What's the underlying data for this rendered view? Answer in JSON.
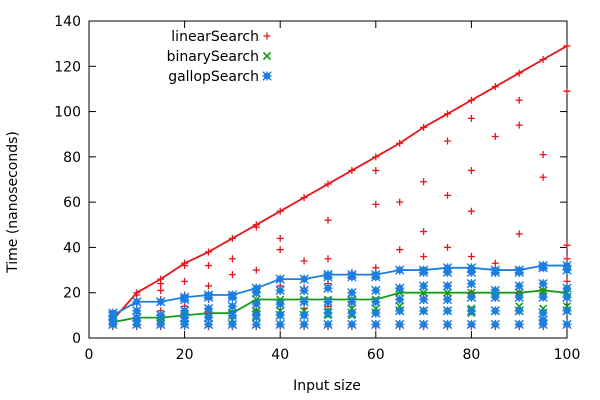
{
  "chart_data": {
    "type": "scatter",
    "xlabel": "Input size",
    "ylabel": "Time (nanoseconds)",
    "xlim": [
      0,
      100
    ],
    "ylim": [
      0,
      140
    ],
    "xticks": [
      0,
      20,
      40,
      60,
      80,
      100
    ],
    "yticks": [
      0,
      20,
      40,
      60,
      80,
      100,
      120,
      140
    ],
    "grid": false,
    "legend_position": "top-left",
    "series": [
      {
        "name": "linearSearch",
        "marker": "plus",
        "color": "#e8141a",
        "line": [
          [
            5,
            8
          ],
          [
            10,
            20
          ],
          [
            15,
            26
          ],
          [
            20,
            33
          ],
          [
            25,
            38
          ],
          [
            30,
            44
          ],
          [
            35,
            50
          ],
          [
            40,
            56
          ],
          [
            45,
            62
          ],
          [
            50,
            68
          ],
          [
            55,
            74
          ],
          [
            60,
            80
          ],
          [
            65,
            86
          ],
          [
            70,
            93
          ],
          [
            75,
            99
          ],
          [
            80,
            105
          ],
          [
            85,
            111
          ],
          [
            90,
            117
          ],
          [
            95,
            123
          ],
          [
            100,
            129
          ]
        ],
        "points": [
          [
            5,
            5
          ],
          [
            5,
            7
          ],
          [
            5,
            8
          ],
          [
            5,
            10
          ],
          [
            10,
            5
          ],
          [
            10,
            8
          ],
          [
            10,
            11
          ],
          [
            10,
            15
          ],
          [
            10,
            19
          ],
          [
            10,
            20
          ],
          [
            15,
            5
          ],
          [
            15,
            9
          ],
          [
            15,
            12
          ],
          [
            15,
            17
          ],
          [
            15,
            21
          ],
          [
            15,
            24
          ],
          [
            15,
            26
          ],
          [
            20,
            5
          ],
          [
            20,
            9
          ],
          [
            20,
            14
          ],
          [
            20,
            19
          ],
          [
            20,
            25
          ],
          [
            20,
            32
          ],
          [
            20,
            33
          ],
          [
            25,
            5
          ],
          [
            25,
            11
          ],
          [
            25,
            17
          ],
          [
            25,
            23
          ],
          [
            25,
            32
          ],
          [
            25,
            38
          ],
          [
            30,
            5
          ],
          [
            30,
            12
          ],
          [
            30,
            19
          ],
          [
            30,
            28
          ],
          [
            30,
            35
          ],
          [
            30,
            44
          ],
          [
            35,
            5
          ],
          [
            35,
            12
          ],
          [
            35,
            22
          ],
          [
            35,
            30
          ],
          [
            35,
            49
          ],
          [
            35,
            50
          ],
          [
            40,
            5
          ],
          [
            40,
            14
          ],
          [
            40,
            23
          ],
          [
            40,
            39
          ],
          [
            40,
            44
          ],
          [
            40,
            56
          ],
          [
            45,
            5
          ],
          [
            45,
            13
          ],
          [
            45,
            22
          ],
          [
            45,
            34
          ],
          [
            45,
            62
          ],
          [
            50,
            5
          ],
          [
            50,
            14
          ],
          [
            50,
            24
          ],
          [
            50,
            35
          ],
          [
            50,
            52
          ],
          [
            50,
            68
          ],
          [
            55,
            5
          ],
          [
            55,
            15
          ],
          [
            55,
            28
          ],
          [
            55,
            29
          ],
          [
            55,
            74
          ],
          [
            60,
            5
          ],
          [
            60,
            16
          ],
          [
            60,
            31
          ],
          [
            60,
            59
          ],
          [
            60,
            74
          ],
          [
            60,
            80
          ],
          [
            65,
            5
          ],
          [
            65,
            17
          ],
          [
            65,
            30
          ],
          [
            65,
            39
          ],
          [
            65,
            60
          ],
          [
            65,
            86
          ],
          [
            70,
            5
          ],
          [
            70,
            18
          ],
          [
            70,
            36
          ],
          [
            70,
            47
          ],
          [
            70,
            69
          ],
          [
            70,
            93
          ],
          [
            75,
            5
          ],
          [
            75,
            18
          ],
          [
            75,
            40
          ],
          [
            75,
            63
          ],
          [
            75,
            87
          ],
          [
            75,
            99
          ],
          [
            80,
            5
          ],
          [
            80,
            20
          ],
          [
            80,
            36
          ],
          [
            80,
            56
          ],
          [
            80,
            74
          ],
          [
            80,
            97
          ],
          [
            80,
            105
          ],
          [
            85,
            5
          ],
          [
            85,
            18
          ],
          [
            85,
            33
          ],
          [
            85,
            89
          ],
          [
            85,
            111
          ],
          [
            90,
            5
          ],
          [
            90,
            20
          ],
          [
            90,
            46
          ],
          [
            90,
            94
          ],
          [
            90,
            105
          ],
          [
            90,
            117
          ],
          [
            95,
            5
          ],
          [
            95,
            21
          ],
          [
            95,
            71
          ],
          [
            95,
            81
          ],
          [
            95,
            123
          ],
          [
            100,
            5
          ],
          [
            100,
            25
          ],
          [
            100,
            35
          ],
          [
            100,
            41
          ],
          [
            100,
            109
          ],
          [
            100,
            129
          ]
        ]
      },
      {
        "name": "binarySearch",
        "marker": "cross",
        "color": "#12a012",
        "line": [
          [
            5,
            7
          ],
          [
            10,
            9
          ],
          [
            15,
            9
          ],
          [
            20,
            10
          ],
          [
            25,
            11
          ],
          [
            30,
            11
          ],
          [
            35,
            17
          ],
          [
            40,
            17
          ],
          [
            45,
            17
          ],
          [
            50,
            17
          ],
          [
            55,
            17
          ],
          [
            60,
            17
          ],
          [
            65,
            20
          ],
          [
            70,
            20
          ],
          [
            75,
            20
          ],
          [
            80,
            20
          ],
          [
            85,
            20
          ],
          [
            90,
            20
          ],
          [
            95,
            21
          ],
          [
            100,
            20
          ]
        ],
        "points": [
          [
            5,
            6
          ],
          [
            5,
            7
          ],
          [
            5,
            8
          ],
          [
            10,
            7
          ],
          [
            10,
            9
          ],
          [
            15,
            8
          ],
          [
            15,
            9
          ],
          [
            20,
            8
          ],
          [
            20,
            10
          ],
          [
            25,
            9
          ],
          [
            25,
            11
          ],
          [
            30,
            8
          ],
          [
            30,
            10
          ],
          [
            30,
            11
          ],
          [
            35,
            9
          ],
          [
            35,
            11
          ],
          [
            35,
            12
          ],
          [
            35,
            17
          ],
          [
            40,
            10
          ],
          [
            40,
            12
          ],
          [
            40,
            17
          ],
          [
            45,
            10
          ],
          [
            45,
            12
          ],
          [
            45,
            17
          ],
          [
            50,
            10
          ],
          [
            50,
            12
          ],
          [
            50,
            17
          ],
          [
            55,
            10
          ],
          [
            55,
            13
          ],
          [
            55,
            17
          ],
          [
            60,
            11
          ],
          [
            60,
            13
          ],
          [
            60,
            17
          ],
          [
            65,
            12
          ],
          [
            65,
            14
          ],
          [
            65,
            20
          ],
          [
            70,
            12
          ],
          [
            70,
            20
          ],
          [
            75,
            12
          ],
          [
            75,
            20
          ],
          [
            80,
            11
          ],
          [
            80,
            13
          ],
          [
            80,
            20
          ],
          [
            85,
            12
          ],
          [
            85,
            20
          ],
          [
            90,
            12
          ],
          [
            90,
            14
          ],
          [
            90,
            20
          ],
          [
            95,
            13
          ],
          [
            95,
            20
          ],
          [
            95,
            21
          ],
          [
            100,
            12
          ],
          [
            100,
            14
          ],
          [
            100,
            20
          ]
        ]
      },
      {
        "name": "gallopSearch",
        "marker": "filled-star",
        "color": "#1c7fe0",
        "line": [
          [
            5,
            10
          ],
          [
            10,
            16
          ],
          [
            15,
            16
          ],
          [
            20,
            18
          ],
          [
            25,
            19
          ],
          [
            30,
            19
          ],
          [
            35,
            22
          ],
          [
            40,
            26
          ],
          [
            45,
            26
          ],
          [
            50,
            28
          ],
          [
            55,
            28
          ],
          [
            60,
            28
          ],
          [
            65,
            30
          ],
          [
            70,
            30
          ],
          [
            75,
            31
          ],
          [
            80,
            31
          ],
          [
            85,
            30
          ],
          [
            90,
            30
          ],
          [
            95,
            32
          ],
          [
            100,
            32
          ]
        ],
        "points": [
          [
            5,
            6
          ],
          [
            5,
            8
          ],
          [
            5,
            10
          ],
          [
            5,
            11
          ],
          [
            10,
            6
          ],
          [
            10,
            9
          ],
          [
            10,
            12
          ],
          [
            10,
            16
          ],
          [
            15,
            6
          ],
          [
            15,
            10
          ],
          [
            15,
            16
          ],
          [
            20,
            6
          ],
          [
            20,
            9
          ],
          [
            20,
            12
          ],
          [
            20,
            17
          ],
          [
            20,
            18
          ],
          [
            25,
            6
          ],
          [
            25,
            9
          ],
          [
            25,
            13
          ],
          [
            25,
            18
          ],
          [
            25,
            19
          ],
          [
            30,
            6
          ],
          [
            30,
            10
          ],
          [
            30,
            14
          ],
          [
            30,
            18
          ],
          [
            30,
            19
          ],
          [
            35,
            6
          ],
          [
            35,
            10
          ],
          [
            35,
            15
          ],
          [
            35,
            20
          ],
          [
            35,
            22
          ],
          [
            40,
            6
          ],
          [
            40,
            10
          ],
          [
            40,
            15
          ],
          [
            40,
            21
          ],
          [
            40,
            26
          ],
          [
            45,
            6
          ],
          [
            45,
            10
          ],
          [
            45,
            16
          ],
          [
            45,
            21
          ],
          [
            45,
            26
          ],
          [
            50,
            6
          ],
          [
            50,
            11
          ],
          [
            50,
            16
          ],
          [
            50,
            22
          ],
          [
            50,
            27
          ],
          [
            50,
            28
          ],
          [
            55,
            6
          ],
          [
            55,
            11
          ],
          [
            55,
            16
          ],
          [
            55,
            20
          ],
          [
            55,
            27
          ],
          [
            55,
            28
          ],
          [
            60,
            6
          ],
          [
            60,
            11
          ],
          [
            60,
            16
          ],
          [
            60,
            21
          ],
          [
            60,
            27
          ],
          [
            60,
            28
          ],
          [
            65,
            6
          ],
          [
            65,
            12
          ],
          [
            65,
            17
          ],
          [
            65,
            22
          ],
          [
            65,
            30
          ],
          [
            70,
            6
          ],
          [
            70,
            12
          ],
          [
            70,
            17
          ],
          [
            70,
            23
          ],
          [
            70,
            29
          ],
          [
            70,
            30
          ],
          [
            75,
            6
          ],
          [
            75,
            12
          ],
          [
            75,
            17
          ],
          [
            75,
            23
          ],
          [
            75,
            29
          ],
          [
            75,
            31
          ],
          [
            80,
            6
          ],
          [
            80,
            12
          ],
          [
            80,
            18
          ],
          [
            80,
            24
          ],
          [
            80,
            29
          ],
          [
            80,
            31
          ],
          [
            85,
            6
          ],
          [
            85,
            12
          ],
          [
            85,
            18
          ],
          [
            85,
            21
          ],
          [
            85,
            29
          ],
          [
            85,
            30
          ],
          [
            90,
            6
          ],
          [
            90,
            12
          ],
          [
            90,
            18
          ],
          [
            90,
            23
          ],
          [
            90,
            29
          ],
          [
            90,
            30
          ],
          [
            95,
            6
          ],
          [
            95,
            8
          ],
          [
            95,
            11
          ],
          [
            95,
            18
          ],
          [
            95,
            24
          ],
          [
            95,
            31
          ],
          [
            95,
            32
          ],
          [
            100,
            6
          ],
          [
            100,
            12
          ],
          [
            100,
            18
          ],
          [
            100,
            22
          ],
          [
            100,
            30
          ],
          [
            100,
            32
          ]
        ]
      }
    ]
  }
}
